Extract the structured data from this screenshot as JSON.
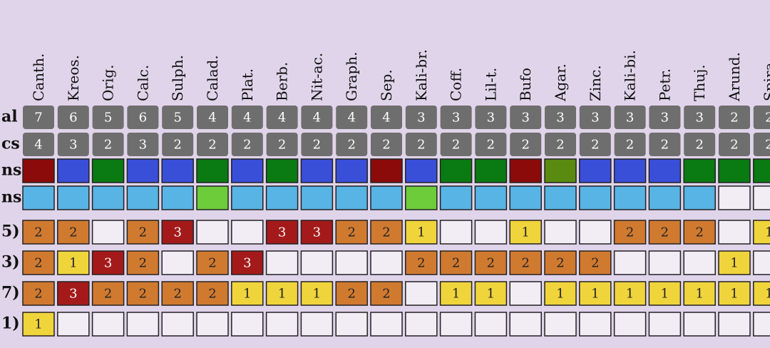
{
  "columns": [
    "Canth.",
    "Kreos.",
    "Orig.",
    "Calc.",
    "Sulph.",
    "Calad.",
    "Plat.",
    "Berb.",
    "Nit-ac.",
    "Graph.",
    "Sep.",
    "Kali-br.",
    "Coff.",
    "Lil-t.",
    "Bufo",
    "Agar.",
    "Zinc.",
    "Kali-bi.",
    "Petr.",
    "Thuj.",
    "Arund.",
    "Spira"
  ],
  "summary_rows": [
    {
      "label": "al",
      "values": [
        7,
        6,
        5,
        6,
        5,
        4,
        4,
        4,
        4,
        4,
        4,
        3,
        3,
        3,
        3,
        3,
        3,
        3,
        3,
        3,
        2,
        2
      ]
    },
    {
      "label": "cs",
      "values": [
        4,
        3,
        2,
        3,
        2,
        2,
        2,
        2,
        2,
        2,
        2,
        2,
        2,
        2,
        2,
        2,
        2,
        2,
        2,
        2,
        2,
        2
      ]
    }
  ],
  "color_rows": [
    {
      "label": "ns",
      "colors": [
        "#8b0a0a",
        "#3a4fd8",
        "#0a7a12",
        "#3a4fd8",
        "#3a4fd8",
        "#0a7a12",
        "#3a4fd8",
        "#0a7a12",
        "#3a4fd8",
        "#3a4fd8",
        "#8b0a0a",
        "#3a4fd8",
        "#0a7a12",
        "#0a7a12",
        "#8b0a0a",
        "#5a8a10",
        "#3a4fd8",
        "#3a4fd8",
        "#3a4fd8",
        "#0a7a12",
        "#0a7a12",
        "#0a7a12"
      ]
    },
    {
      "label": "ns",
      "colors": [
        "#58b4e4",
        "#58b4e4",
        "#58b4e4",
        "#58b4e4",
        "#58b4e4",
        "#6ccc3a",
        "#58b4e4",
        "#58b4e4",
        "#58b4e4",
        "#58b4e4",
        "#58b4e4",
        "#6ccc3a",
        "#58b4e4",
        "#58b4e4",
        "#58b4e4",
        "#58b4e4",
        "#58b4e4",
        "#58b4e4",
        "#58b4e4",
        "#58b4e4",
        "#f2ecf4",
        "#f2ecf4"
      ]
    }
  ],
  "grade_colors": {
    "1": "#f0d43c",
    "2": "#d07a30",
    "3": "#a41a1a"
  },
  "symptom_rows": [
    {
      "label": "5)",
      "values": [
        2,
        2,
        null,
        2,
        3,
        null,
        null,
        3,
        3,
        2,
        2,
        1,
        null,
        null,
        1,
        null,
        null,
        2,
        2,
        2,
        null,
        1
      ]
    },
    {
      "label": "3)",
      "values": [
        2,
        1,
        3,
        2,
        null,
        2,
        3,
        null,
        null,
        null,
        null,
        2,
        2,
        2,
        2,
        2,
        2,
        null,
        null,
        null,
        1,
        null
      ]
    },
    {
      "label": "7)",
      "values": [
        2,
        3,
        2,
        2,
        2,
        2,
        1,
        1,
        1,
        2,
        2,
        null,
        1,
        1,
        null,
        1,
        1,
        1,
        1,
        1,
        1,
        1
      ]
    },
    {
      "label": "1)",
      "values": [
        1,
        null,
        null,
        null,
        null,
        null,
        null,
        null,
        null,
        null,
        null,
        null,
        null,
        null,
        null,
        null,
        null,
        null,
        null,
        null,
        null,
        null
      ]
    }
  ]
}
